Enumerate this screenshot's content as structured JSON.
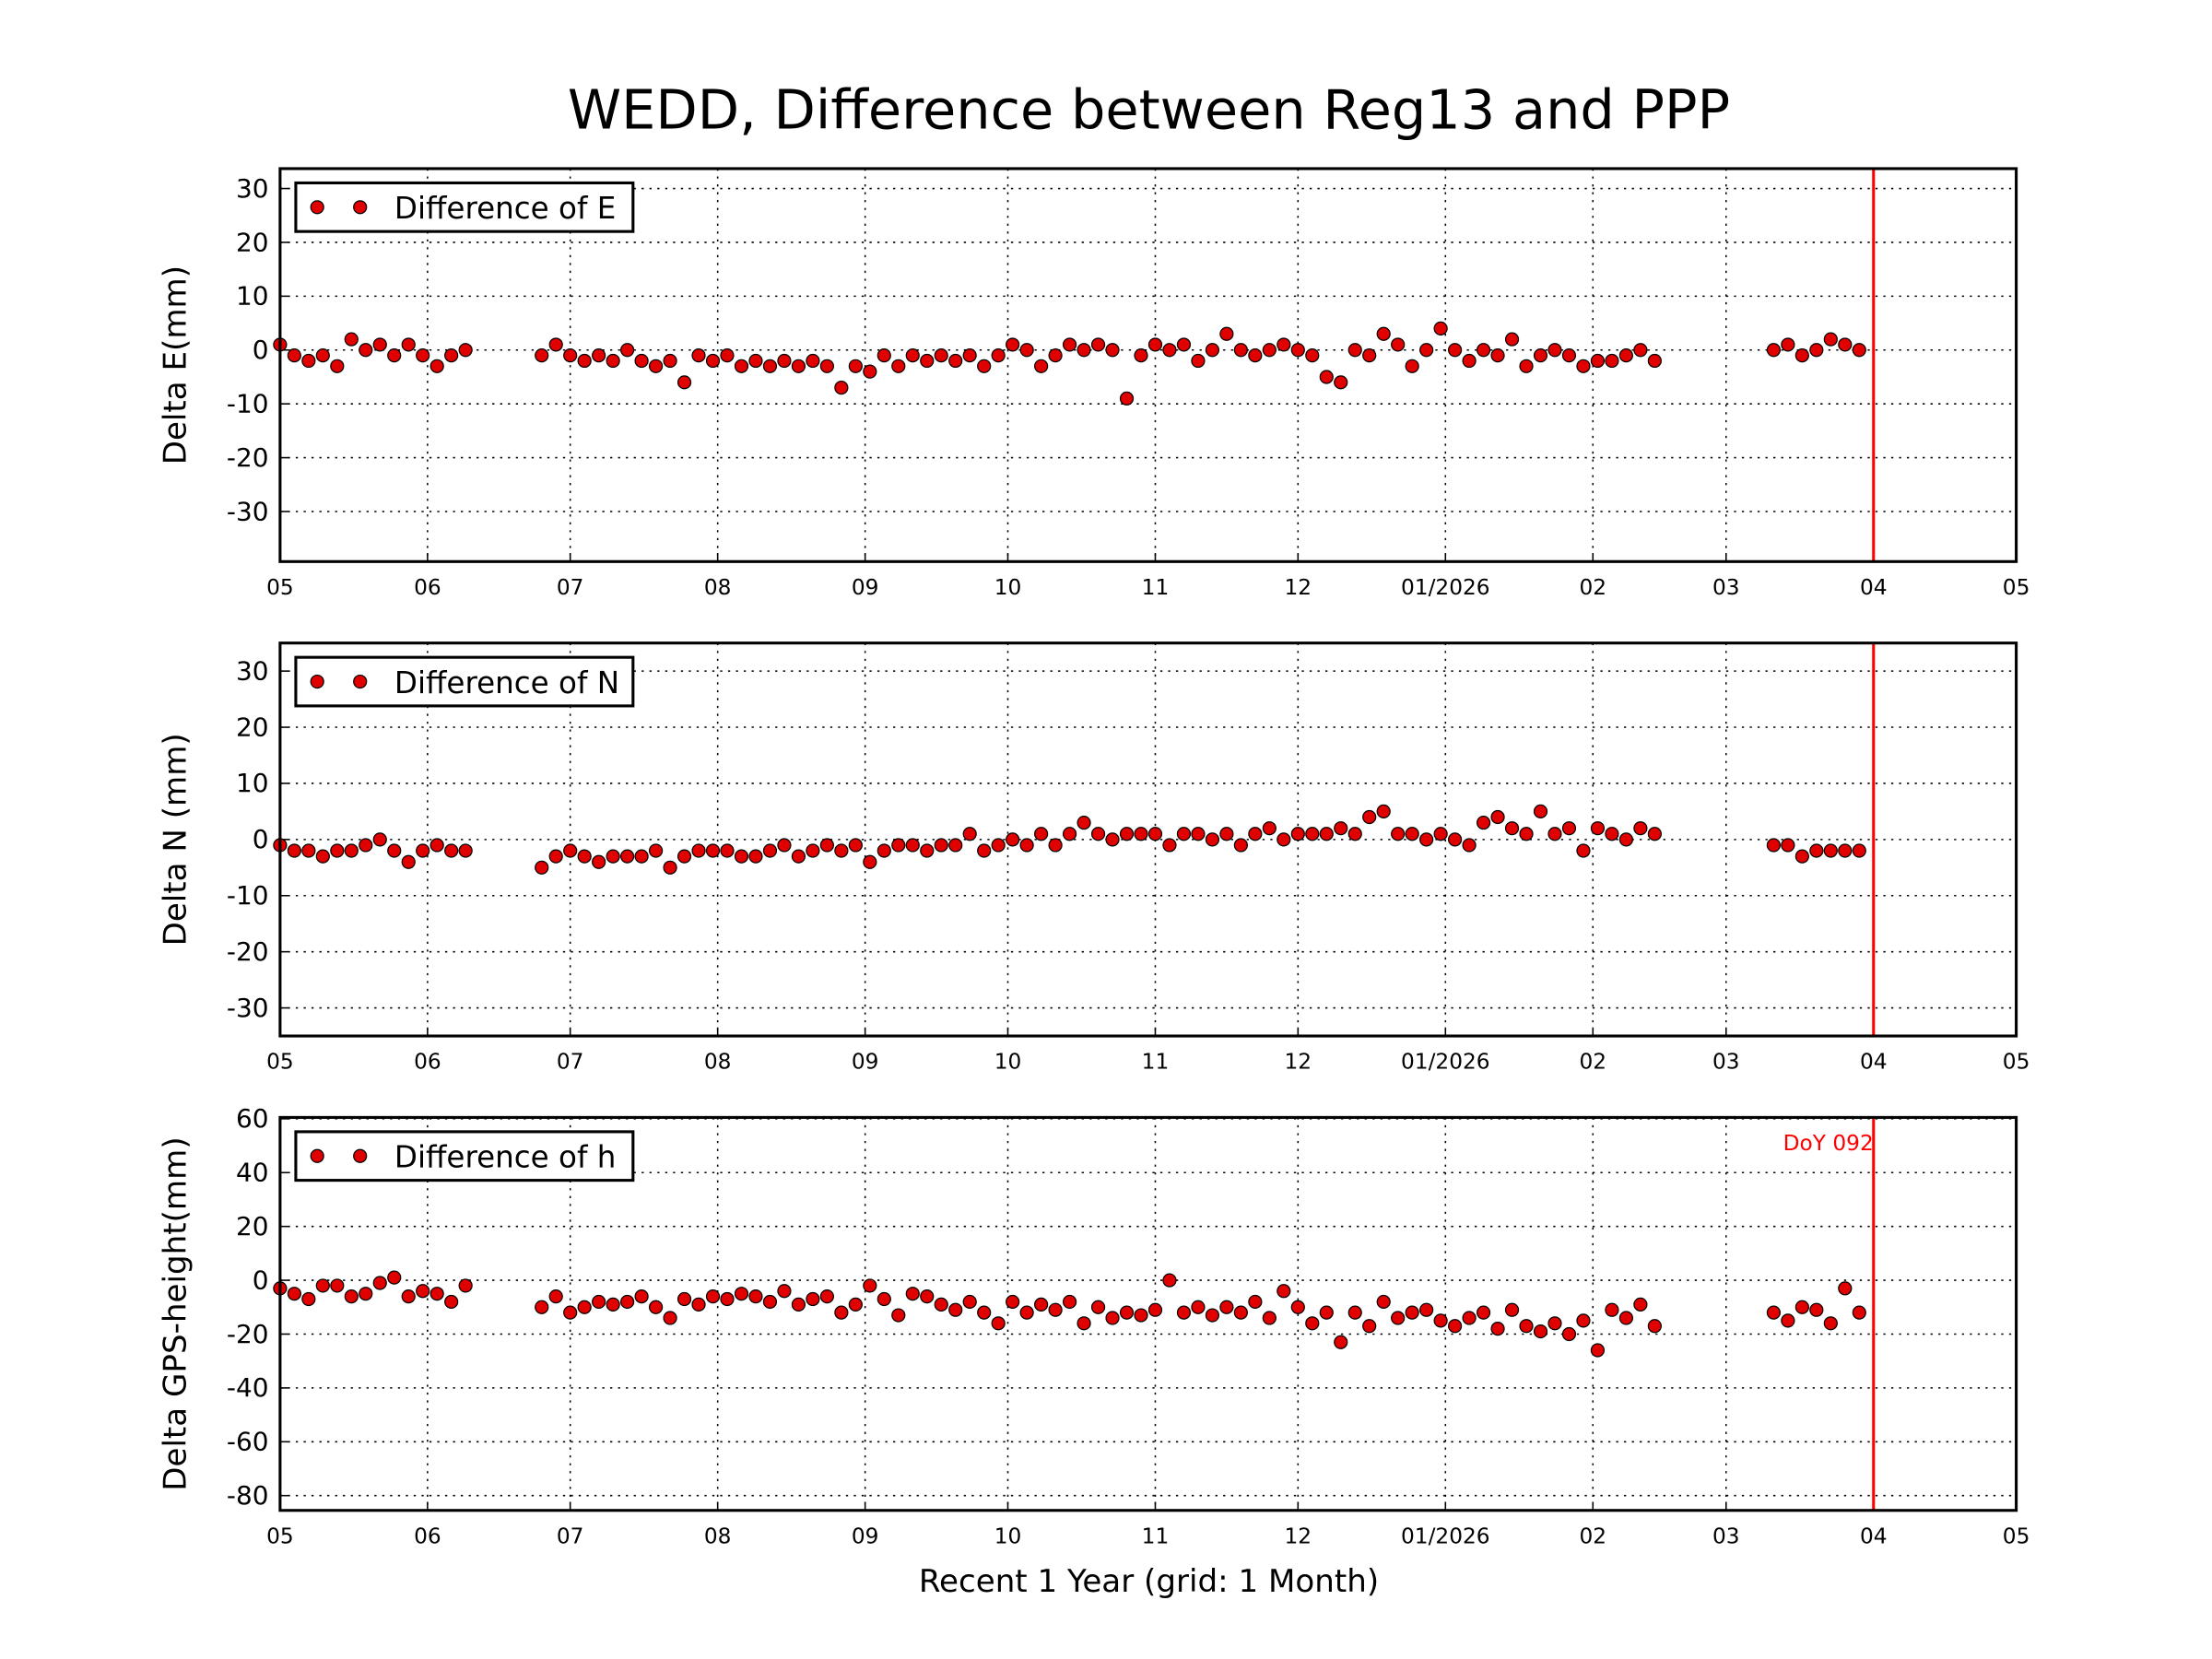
{
  "title": "WEDD, Difference between Reg13 and PPP",
  "xlabel": "Recent 1 Year (grid: 1 Month)",
  "chart_data": [
    {
      "type": "scatter",
      "ylabel": "Delta E(mm)",
      "legend": "upper left",
      "grid": true,
      "xlim": [
        0,
        365
      ],
      "xticks": [
        {
          "value": 0,
          "label": "05"
        },
        {
          "value": 31,
          "label": "06"
        },
        {
          "value": 61,
          "label": "07"
        },
        {
          "value": 92,
          "label": "08"
        },
        {
          "value": 123,
          "label": "09"
        },
        {
          "value": 153,
          "label": "10"
        },
        {
          "value": 184,
          "label": "11"
        },
        {
          "value": 214,
          "label": "12"
        },
        {
          "value": 245,
          "label": "01/2026"
        },
        {
          "value": 276,
          "label": "02"
        },
        {
          "value": 304,
          "label": "03"
        },
        {
          "value": 335,
          "label": "04"
        },
        {
          "value": 365,
          "label": "05"
        }
      ],
      "ylim": [
        -39.3,
        33.7
      ],
      "yticks": [
        -30,
        -20,
        -10,
        0,
        10,
        20,
        30
      ],
      "vline": {
        "value": 335,
        "color": "#ff0000"
      },
      "x": [
        0,
        3,
        6,
        9,
        12,
        15,
        18,
        21,
        24,
        27,
        30,
        33,
        36,
        39,
        55,
        58,
        61,
        64,
        67,
        70,
        73,
        76,
        79,
        82,
        85,
        88,
        91,
        94,
        97,
        100,
        103,
        106,
        109,
        112,
        115,
        118,
        121,
        124,
        127,
        130,
        133,
        136,
        139,
        142,
        145,
        148,
        151,
        154,
        157,
        160,
        163,
        166,
        169,
        172,
        175,
        178,
        181,
        184,
        187,
        190,
        193,
        196,
        199,
        202,
        205,
        208,
        211,
        214,
        217,
        220,
        223,
        226,
        229,
        232,
        235,
        238,
        241,
        244,
        247,
        250,
        253,
        256,
        259,
        262,
        265,
        268,
        271,
        274,
        277,
        280,
        283,
        286,
        289,
        314,
        317,
        320,
        323,
        326,
        329,
        332
      ],
      "series": [
        {
          "name": "Difference of E",
          "color": "#e00000",
          "values": [
            1,
            -1,
            -2,
            -1,
            -3,
            2,
            0,
            1,
            -1,
            1,
            -1,
            -3,
            -1,
            0,
            -1,
            1,
            -1,
            -2,
            -1,
            -2,
            0,
            -2,
            -3,
            -2,
            -6,
            -1,
            -2,
            -1,
            -3,
            -2,
            -3,
            -2,
            -3,
            -2,
            -3,
            -7,
            -3,
            -4,
            -1,
            -3,
            -1,
            -2,
            -1,
            -2,
            -1,
            -3,
            -1,
            1,
            0,
            -3,
            -1,
            1,
            0,
            1,
            0,
            -9,
            -1,
            1,
            0,
            1,
            -2,
            0,
            3,
            0,
            -1,
            0,
            1,
            0,
            -1,
            -5,
            -6,
            0,
            -1,
            3,
            1,
            -3,
            0,
            4,
            0,
            -2,
            0,
            -1,
            2,
            -3,
            -1,
            0,
            -1,
            -3,
            -2,
            -2,
            -1,
            0,
            -2,
            0,
            1,
            -1,
            0,
            2,
            1,
            0
          ]
        }
      ]
    },
    {
      "type": "scatter",
      "ylabel": "Delta N (mm)",
      "legend": "upper left",
      "grid": true,
      "xlim": [
        0,
        365
      ],
      "xticks": [
        {
          "value": 0,
          "label": "05"
        },
        {
          "value": 31,
          "label": "06"
        },
        {
          "value": 61,
          "label": "07"
        },
        {
          "value": 92,
          "label": "08"
        },
        {
          "value": 123,
          "label": "09"
        },
        {
          "value": 153,
          "label": "10"
        },
        {
          "value": 184,
          "label": "11"
        },
        {
          "value": 214,
          "label": "12"
        },
        {
          "value": 245,
          "label": "01/2026"
        },
        {
          "value": 276,
          "label": "02"
        },
        {
          "value": 304,
          "label": "03"
        },
        {
          "value": 335,
          "label": "04"
        },
        {
          "value": 365,
          "label": "05"
        }
      ],
      "ylim": [
        -35,
        35
      ],
      "yticks": [
        -30,
        -20,
        -10,
        0,
        10,
        20,
        30
      ],
      "vline": {
        "value": 335,
        "color": "#ff0000"
      },
      "x": [
        0,
        3,
        6,
        9,
        12,
        15,
        18,
        21,
        24,
        27,
        30,
        33,
        36,
        39,
        55,
        58,
        61,
        64,
        67,
        70,
        73,
        76,
        79,
        82,
        85,
        88,
        91,
        94,
        97,
        100,
        103,
        106,
        109,
        112,
        115,
        118,
        121,
        124,
        127,
        130,
        133,
        136,
        139,
        142,
        145,
        148,
        151,
        154,
        157,
        160,
        163,
        166,
        169,
        172,
        175,
        178,
        181,
        184,
        187,
        190,
        193,
        196,
        199,
        202,
        205,
        208,
        211,
        214,
        217,
        220,
        223,
        226,
        229,
        232,
        235,
        238,
        241,
        244,
        247,
        250,
        253,
        256,
        259,
        262,
        265,
        268,
        271,
        274,
        277,
        280,
        283,
        286,
        289,
        314,
        317,
        320,
        323,
        326,
        329,
        332
      ],
      "series": [
        {
          "name": "Difference of N",
          "color": "#e00000",
          "values": [
            -1,
            -2,
            -2,
            -3,
            -2,
            -2,
            -1,
            0,
            -2,
            -4,
            -2,
            -1,
            -2,
            -2,
            -5,
            -3,
            -2,
            -3,
            -4,
            -3,
            -3,
            -3,
            -2,
            -5,
            -3,
            -2,
            -2,
            -2,
            -3,
            -3,
            -2,
            -1,
            -3,
            -2,
            -1,
            -2,
            -1,
            -4,
            -2,
            -1,
            -1,
            -2,
            -1,
            -1,
            1,
            -2,
            -1,
            0,
            -1,
            1,
            -1,
            1,
            3,
            1,
            0,
            1,
            1,
            1,
            -1,
            1,
            1,
            0,
            1,
            -1,
            1,
            2,
            0,
            1,
            1,
            1,
            2,
            1,
            4,
            5,
            1,
            1,
            0,
            1,
            0,
            -1,
            3,
            4,
            2,
            1,
            5,
            1,
            2,
            -2,
            2,
            1,
            0,
            2,
            1,
            -1,
            -1,
            -3,
            -2,
            -2,
            -2,
            -2
          ]
        }
      ]
    },
    {
      "type": "scatter",
      "ylabel": "Delta GPS-height(mm)",
      "legend": "upper left",
      "grid": true,
      "xlim": [
        0,
        365
      ],
      "xticks": [
        {
          "value": 0,
          "label": "05"
        },
        {
          "value": 31,
          "label": "06"
        },
        {
          "value": 61,
          "label": "07"
        },
        {
          "value": 92,
          "label": "08"
        },
        {
          "value": 123,
          "label": "09"
        },
        {
          "value": 153,
          "label": "10"
        },
        {
          "value": 184,
          "label": "11"
        },
        {
          "value": 214,
          "label": "12"
        },
        {
          "value": 245,
          "label": "01/2026"
        },
        {
          "value": 276,
          "label": "02"
        },
        {
          "value": 304,
          "label": "03"
        },
        {
          "value": 335,
          "label": "04"
        },
        {
          "value": 365,
          "label": "05"
        }
      ],
      "ylim": [
        -85.5,
        60.5
      ],
      "yticks": [
        -80,
        -60,
        -40,
        -20,
        0,
        20,
        40,
        60
      ],
      "vline": {
        "value": 335,
        "color": "#ff0000"
      },
      "annotation": "DoY 092",
      "x": [
        0,
        3,
        6,
        9,
        12,
        15,
        18,
        21,
        24,
        27,
        30,
        33,
        36,
        39,
        55,
        58,
        61,
        64,
        67,
        70,
        73,
        76,
        79,
        82,
        85,
        88,
        91,
        94,
        97,
        100,
        103,
        106,
        109,
        112,
        115,
        118,
        121,
        124,
        127,
        130,
        133,
        136,
        139,
        142,
        145,
        148,
        151,
        154,
        157,
        160,
        163,
        166,
        169,
        172,
        175,
        178,
        181,
        184,
        187,
        190,
        193,
        196,
        199,
        202,
        205,
        208,
        211,
        214,
        217,
        220,
        223,
        226,
        229,
        232,
        235,
        238,
        241,
        244,
        247,
        250,
        253,
        256,
        259,
        262,
        265,
        268,
        271,
        274,
        277,
        280,
        283,
        286,
        289,
        314,
        317,
        320,
        323,
        326,
        329,
        332
      ],
      "series": [
        {
          "name": "Difference of h",
          "color": "#e00000",
          "values": [
            -3,
            -5,
            -7,
            -2,
            -2,
            -6,
            -5,
            -1,
            1,
            -6,
            -4,
            -5,
            -8,
            -2,
            -10,
            -6,
            -12,
            -10,
            -8,
            -9,
            -8,
            -6,
            -10,
            -14,
            -7,
            -9,
            -6,
            -7,
            -5,
            -6,
            -8,
            -4,
            -9,
            -7,
            -6,
            -12,
            -9,
            -2,
            -7,
            -13,
            -5,
            -6,
            -9,
            -11,
            -8,
            -12,
            -16,
            -8,
            -12,
            -9,
            -11,
            -8,
            -16,
            -10,
            -14,
            -12,
            -13,
            -11,
            0,
            -12,
            -10,
            -13,
            -10,
            -12,
            -8,
            -14,
            -4,
            -10,
            -16,
            -12,
            -23,
            -12,
            -17,
            -8,
            -14,
            -12,
            -11,
            -15,
            -17,
            -14,
            -12,
            -18,
            -11,
            -17,
            -19,
            -16,
            -20,
            -15,
            -26,
            -11,
            -14,
            -9,
            -17,
            -12,
            -15,
            -10,
            -11,
            -16,
            -3,
            -12
          ]
        }
      ]
    }
  ]
}
